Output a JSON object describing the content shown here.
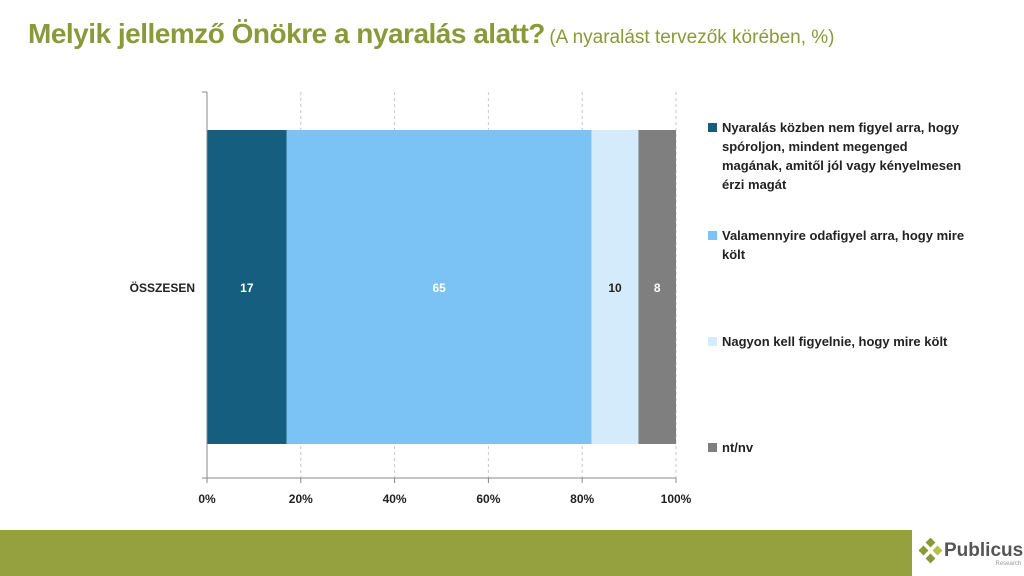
{
  "title": {
    "main": "Melyik jellemző Önökre a nyaralás alatt?",
    "sub": "(A nyaralást tervezők körében, %)"
  },
  "chart_data": {
    "type": "bar",
    "stacked": true,
    "orientation": "horizontal",
    "categories": [
      "ÖSSZESEN"
    ],
    "series": [
      {
        "name": "Nyaralás közben nem figyel arra, hogy spóroljon, mindent megenged magának, amitől jól vagy kényelmesen érzi magát",
        "values": [
          17
        ],
        "color": "#165e80",
        "label_color": "#ffffff"
      },
      {
        "name": "Valamennyire odafigyel arra, hogy mire költ",
        "values": [
          65
        ],
        "color": "#7bc3f5",
        "label_color": "#ffffff"
      },
      {
        "name": "Nagyon kell figyelnie, hogy mire költ",
        "values": [
          10
        ],
        "color": "#d4ebfc",
        "label_color": "#222222"
      },
      {
        "name": "nt/nv",
        "values": [
          8
        ],
        "color": "#7f7f7f",
        "label_color": "#ffffff"
      }
    ],
    "xlim": [
      0,
      100
    ],
    "xticks": [
      "0%",
      "20%",
      "40%",
      "60%",
      "80%",
      "100%"
    ],
    "grid": true,
    "legend": "right"
  },
  "footer": {
    "logo_name": "Publicus",
    "logo_sub": "Research",
    "band_color": "#95a03f"
  }
}
